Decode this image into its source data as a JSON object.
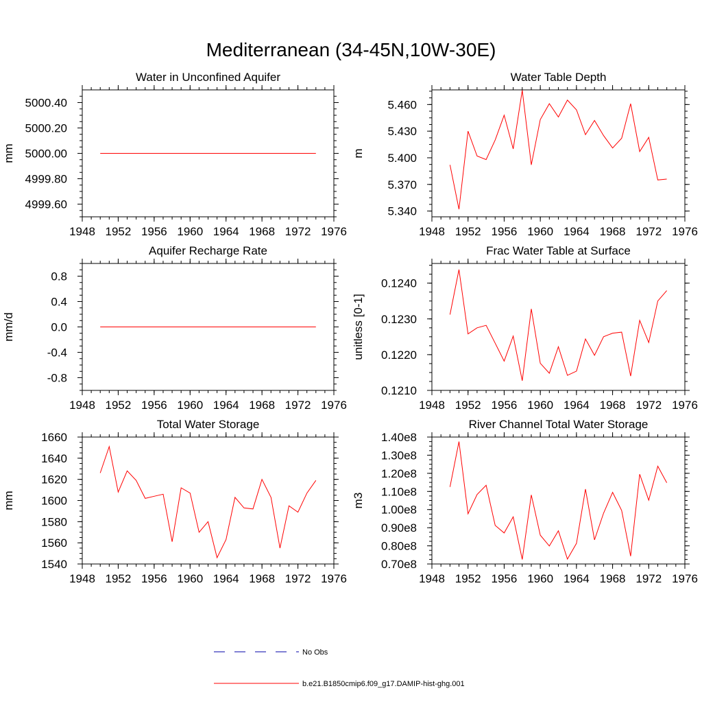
{
  "page": {
    "title": "Mediterranean (34-45N,10W-30E)"
  },
  "colors": {
    "model_line": "#ff0000",
    "obs_line": "#0000aa",
    "axis": "#000000"
  },
  "legend": {
    "placement": "bottom-center",
    "entries": [
      {
        "label": "No Obs",
        "style": "dashed",
        "color": "#0000aa"
      },
      {
        "label": "b.e21.B1850cmip6.f09_g17.DAMIP-hist-ghg.001",
        "style": "solid",
        "color": "#ff0000"
      }
    ]
  },
  "chart_data": [
    {
      "type": "line",
      "title": "Water in Unconfined Aquifer",
      "xlabel": "",
      "ylabel": "mm",
      "xlim": [
        1948,
        1976
      ],
      "ylim": [
        4999.5,
        5000.5
      ],
      "xticks": [
        "1948",
        "1952",
        "1956",
        "1960",
        "1964",
        "1968",
        "1972",
        "1976"
      ],
      "yticks": [
        {
          "value": 4999.6,
          "label": "4999.60"
        },
        {
          "value": 4999.8,
          "label": "4999.80"
        },
        {
          "value": 5000.0,
          "label": "5000.00"
        },
        {
          "value": 5000.2,
          "label": "5000.20"
        },
        {
          "value": 5000.4,
          "label": "5000.40"
        }
      ],
      "grid": false,
      "x": [
        1950,
        1951,
        1952,
        1953,
        1954,
        1955,
        1956,
        1957,
        1958,
        1959,
        1960,
        1961,
        1962,
        1963,
        1964,
        1965,
        1966,
        1967,
        1968,
        1969,
        1970,
        1971,
        1972,
        1973,
        1974
      ],
      "series": [
        {
          "values": [
            5000,
            5000,
            5000,
            5000,
            5000,
            5000,
            5000,
            5000,
            5000,
            5000,
            5000,
            5000,
            5000,
            5000,
            5000,
            5000,
            5000,
            5000,
            5000,
            5000,
            5000,
            5000,
            5000,
            5000,
            5000
          ]
        }
      ]
    },
    {
      "type": "line",
      "title": "Water Table Depth",
      "xlabel": "",
      "ylabel": "m",
      "xlim": [
        1948,
        1976
      ],
      "ylim": [
        5.3335,
        5.4765
      ],
      "xticks": [
        "1948",
        "1952",
        "1956",
        "1960",
        "1964",
        "1968",
        "1972",
        "1976"
      ],
      "yticks": [
        {
          "value": 5.34,
          "label": "5.340"
        },
        {
          "value": 5.37,
          "label": "5.370"
        },
        {
          "value": 5.4,
          "label": "5.400"
        },
        {
          "value": 5.43,
          "label": "5.430"
        },
        {
          "value": 5.46,
          "label": "5.460"
        }
      ],
      "grid": false,
      "x": [
        1950,
        1951,
        1952,
        1953,
        1954,
        1955,
        1956,
        1957,
        1958,
        1959,
        1960,
        1961,
        1962,
        1963,
        1964,
        1965,
        1966,
        1967,
        1968,
        1969,
        1970,
        1971,
        1972,
        1973,
        1974
      ],
      "series": [
        {
          "values": [
            5.392,
            5.342,
            5.43,
            5.402,
            5.398,
            5.42,
            5.448,
            5.41,
            5.476,
            5.392,
            5.443,
            5.461,
            5.446,
            5.465,
            5.454,
            5.426,
            5.442,
            5.425,
            5.411,
            5.422,
            5.461,
            5.407,
            5.423,
            5.375,
            5.376
          ]
        }
      ]
    },
    {
      "type": "line",
      "title": "Aquifer Recharge Rate",
      "xlabel": "",
      "ylabel": "mm/d",
      "xlim": [
        1948,
        1976
      ],
      "ylim": [
        -1.0,
        1.0
      ],
      "xticks": [
        "1948",
        "1952",
        "1956",
        "1960",
        "1964",
        "1968",
        "1972",
        "1976"
      ],
      "yticks": [
        {
          "value": -0.8,
          "label": "-0.8"
        },
        {
          "value": -0.4,
          "label": "-0.4"
        },
        {
          "value": 0.0,
          "label": "0.0"
        },
        {
          "value": 0.4,
          "label": "0.4"
        },
        {
          "value": 0.8,
          "label": "0.8"
        }
      ],
      "grid": false,
      "x": [
        1950,
        1951,
        1952,
        1953,
        1954,
        1955,
        1956,
        1957,
        1958,
        1959,
        1960,
        1961,
        1962,
        1963,
        1964,
        1965,
        1966,
        1967,
        1968,
        1969,
        1970,
        1971,
        1972,
        1973,
        1974
      ],
      "series": [
        {
          "values": [
            0,
            0,
            0,
            0,
            0,
            0,
            0,
            0,
            0,
            0,
            0,
            0,
            0,
            0,
            0,
            0,
            0,
            0,
            0,
            0,
            0,
            0,
            0,
            0,
            0
          ]
        }
      ]
    },
    {
      "type": "line",
      "title": "Frac Water Table at Surface",
      "xlabel": "",
      "ylabel": "unitless [0-1]",
      "xlim": [
        1948,
        1976
      ],
      "ylim": [
        0.121,
        0.12455
      ],
      "xticks": [
        "1948",
        "1952",
        "1956",
        "1960",
        "1964",
        "1968",
        "1972",
        "1976"
      ],
      "yticks": [
        {
          "value": 0.121,
          "label": "0.1210"
        },
        {
          "value": 0.122,
          "label": "0.1220"
        },
        {
          "value": 0.123,
          "label": "0.1230"
        },
        {
          "value": 0.124,
          "label": "0.1240"
        }
      ],
      "grid": false,
      "x": [
        1950,
        1951,
        1952,
        1953,
        1954,
        1955,
        1956,
        1957,
        1958,
        1959,
        1960,
        1961,
        1962,
        1963,
        1964,
        1965,
        1966,
        1967,
        1968,
        1969,
        1970,
        1971,
        1972,
        1973,
        1974
      ],
      "series": [
        {
          "values": [
            0.12312,
            0.12438,
            0.12258,
            0.12275,
            0.12282,
            0.12232,
            0.12182,
            0.12252,
            0.12127,
            0.12328,
            0.12176,
            0.12148,
            0.12222,
            0.12142,
            0.12154,
            0.12244,
            0.12198,
            0.1225,
            0.1226,
            0.12263,
            0.1214,
            0.12296,
            0.12234,
            0.1235,
            0.12379
          ]
        }
      ]
    },
    {
      "type": "line",
      "title": "Total Water Storage",
      "xlabel": "",
      "ylabel": "mm",
      "xlim": [
        1948,
        1976
      ],
      "ylim": [
        1540,
        1660
      ],
      "xticks": [
        "1948",
        "1952",
        "1956",
        "1960",
        "1964",
        "1968",
        "1972",
        "1976"
      ],
      "yticks": [
        {
          "value": 1540,
          "label": "1540"
        },
        {
          "value": 1560,
          "label": "1560"
        },
        {
          "value": 1580,
          "label": "1580"
        },
        {
          "value": 1600,
          "label": "1600"
        },
        {
          "value": 1620,
          "label": "1620"
        },
        {
          "value": 1640,
          "label": "1640"
        },
        {
          "value": 1660,
          "label": "1660"
        }
      ],
      "grid": false,
      "x": [
        1950,
        1951,
        1952,
        1953,
        1954,
        1955,
        1956,
        1957,
        1958,
        1959,
        1960,
        1961,
        1962,
        1963,
        1964,
        1965,
        1966,
        1967,
        1968,
        1969,
        1970,
        1971,
        1972,
        1973,
        1974
      ],
      "series": [
        {
          "values": [
            1626,
            1651,
            1608,
            1628,
            1619,
            1602,
            1604,
            1606,
            1561,
            1612,
            1607,
            1570,
            1580,
            1546,
            1563,
            1603,
            1593,
            1592,
            1620,
            1603,
            1555,
            1595,
            1589,
            1607,
            1619
          ]
        }
      ]
    },
    {
      "type": "line",
      "title": "River Channel Total Water Storage",
      "xlabel": "",
      "ylabel": "m3",
      "xlim": [
        1948,
        1976
      ],
      "ylim": [
        70000000,
        140000000
      ],
      "xticks": [
        "1948",
        "1952",
        "1956",
        "1960",
        "1964",
        "1968",
        "1972",
        "1976"
      ],
      "yticks": [
        {
          "value": 70000000,
          "label": "0.70e8"
        },
        {
          "value": 80000000,
          "label": "0.80e8"
        },
        {
          "value": 90000000,
          "label": "0.90e8"
        },
        {
          "value": 100000000,
          "label": "1.00e8"
        },
        {
          "value": 110000000,
          "label": "1.10e8"
        },
        {
          "value": 120000000,
          "label": "1.20e8"
        },
        {
          "value": 130000000,
          "label": "1.30e8"
        },
        {
          "value": 140000000,
          "label": "1.40e8"
        }
      ],
      "grid": false,
      "x": [
        1950,
        1951,
        1952,
        1953,
        1954,
        1955,
        1956,
        1957,
        1958,
        1959,
        1960,
        1961,
        1962,
        1963,
        1964,
        1965,
        1966,
        1967,
        1968,
        1969,
        1970,
        1971,
        1972,
        1973,
        1974
      ],
      "series": [
        {
          "values": [
            112500000,
            137500000,
            97700000,
            108300000,
            113400000,
            91300000,
            87100000,
            96000000,
            72500000,
            108100000,
            85900000,
            79900000,
            88300000,
            72700000,
            81400000,
            111300000,
            83300000,
            98000000,
            109500000,
            99500000,
            74300000,
            119500000,
            105200000,
            123900000,
            114800000
          ]
        }
      ]
    }
  ]
}
